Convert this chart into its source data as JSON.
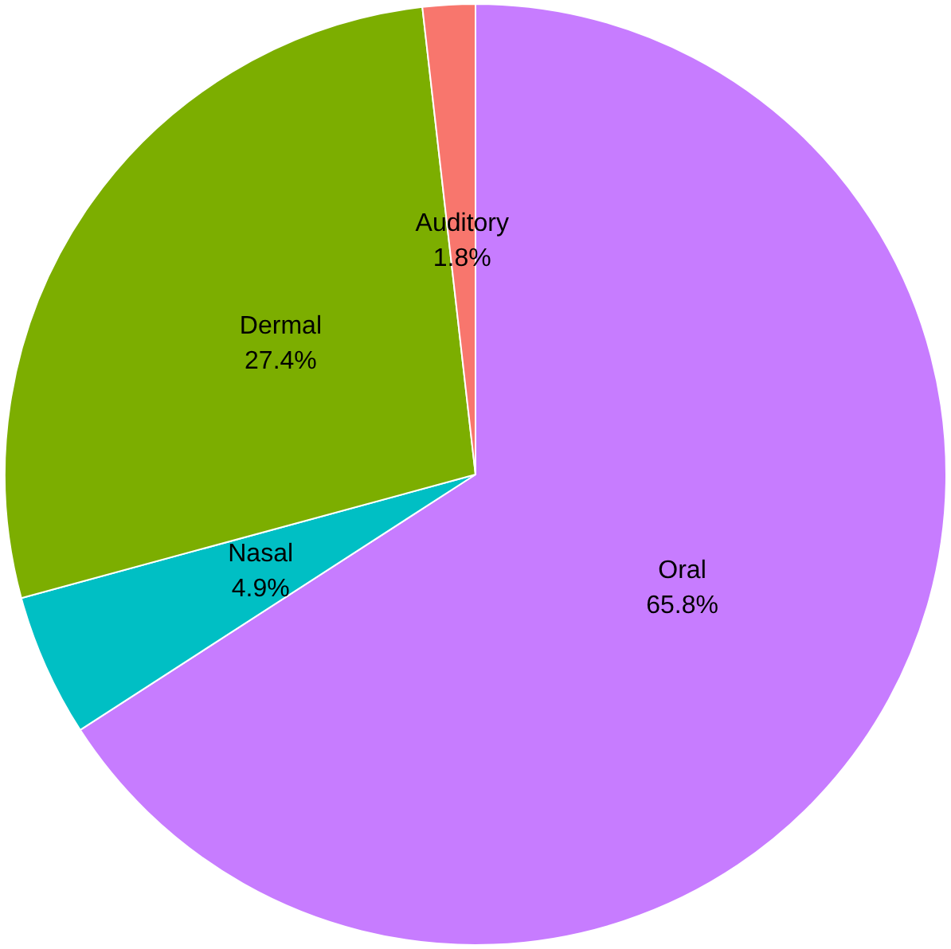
{
  "chart_data": {
    "type": "pie",
    "categories": [
      "Oral",
      "Nasal",
      "Dermal",
      "Auditory"
    ],
    "values": [
      65.8,
      4.9,
      27.4,
      1.8
    ],
    "value_labels": [
      "65.8%",
      "4.9%",
      "27.4%",
      "1.8%"
    ],
    "colors": [
      "#c77cff",
      "#00bfc4",
      "#7cae00",
      "#f8766d"
    ],
    "legend": false
  }
}
